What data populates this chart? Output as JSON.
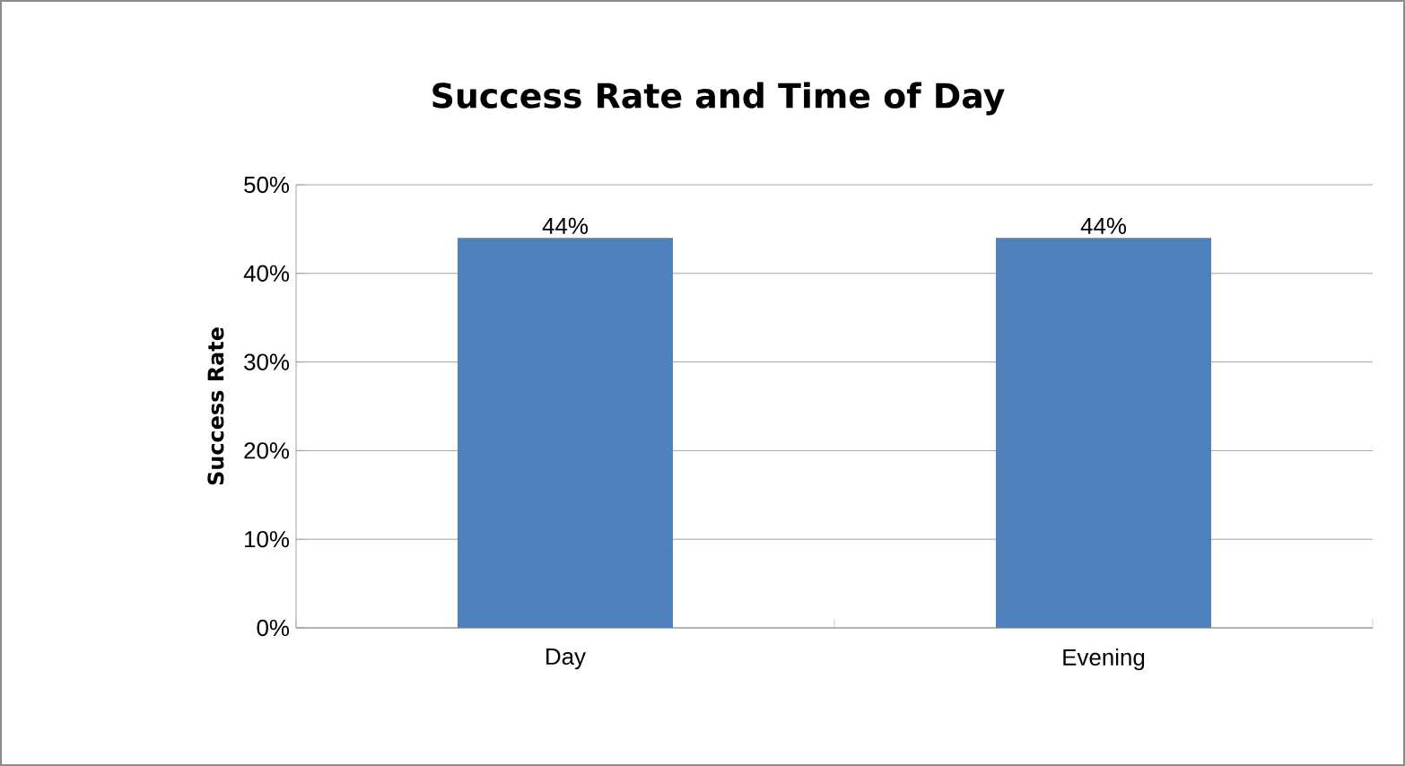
{
  "chart_data": {
    "type": "bar",
    "title": "Success Rate and Time of Day",
    "ylabel": "Success Rate",
    "categories": [
      "Day",
      "Evening"
    ],
    "values": [
      44,
      44
    ],
    "color": "#4f81bd",
    "value_labels": [
      "44%",
      "44%"
    ],
    "ylim": [
      0,
      50
    ],
    "yticks": [
      {
        "value": 0,
        "label": "0%"
      },
      {
        "value": 10,
        "label": "10%"
      },
      {
        "value": 20,
        "label": "20%"
      },
      {
        "value": 30,
        "label": "30%"
      },
      {
        "value": 40,
        "label": "40%"
      },
      {
        "value": 50,
        "label": "50%"
      }
    ],
    "grid": "y"
  }
}
